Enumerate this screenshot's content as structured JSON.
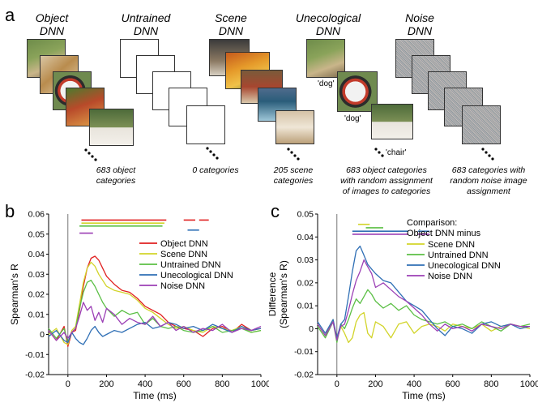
{
  "panel_a": {
    "letter": "a",
    "columns": [
      {
        "title_line1": "Object",
        "title_line2": "DNN",
        "caption_lines": [
          "683 object",
          "categories"
        ]
      },
      {
        "title_line1": "Untrained",
        "title_line2": "DNN",
        "caption_lines": [
          "0 categories"
        ]
      },
      {
        "title_line1": "Scene",
        "title_line2": "DNN",
        "caption_lines": [
          "205 scene",
          "categories"
        ]
      },
      {
        "title_line1": "Unecological",
        "title_line2": "DNN",
        "caption_lines": [
          "683 object categories",
          "with random assignment",
          "of images to categories"
        ]
      },
      {
        "title_line1": "Noise",
        "title_line2": "DNN",
        "caption_lines": [
          "683 categories with",
          "random noise image",
          "assignment"
        ]
      }
    ],
    "unecological_labels": [
      "'dog'",
      "'dog'",
      "'chair'"
    ]
  },
  "colors": {
    "red": "#e02020",
    "yellow": "#d2d42a",
    "green": "#5bbf45",
    "blue": "#2f6fb5",
    "purple": "#9b3fb5"
  },
  "chart_data": [
    {
      "type": "line",
      "panel_letter": "b",
      "xlabel": "Time (ms)",
      "ylabel": "Spearman's R",
      "xlim": [
        -100,
        1000
      ],
      "ylim": [
        -0.02,
        0.06
      ],
      "xticks": [
        "0",
        "200",
        "400",
        "600",
        "800",
        "1000"
      ],
      "yticks": [
        "-0.02",
        "-0.01",
        "0",
        "0.01",
        "0.02",
        "0.03",
        "0.04",
        "0.05",
        "0.06"
      ],
      "legend": [
        "Object DNN",
        "Scene DNN",
        "Untrained DNN",
        "Unecological DNN",
        "Noise DNN"
      ],
      "series": [
        {
          "name": "Object DNN",
          "color_key": "red",
          "x": [
            -100,
            -60,
            -20,
            0,
            20,
            40,
            60,
            80,
            100,
            120,
            140,
            160,
            180,
            200,
            240,
            280,
            320,
            360,
            400,
            440,
            480,
            520,
            560,
            600,
            650,
            700,
            750,
            800,
            850,
            900,
            950,
            1000
          ],
          "y": [
            0.002,
            -0.003,
            0.004,
            -0.006,
            0.001,
            0.002,
            0.012,
            0.024,
            0.033,
            0.038,
            0.039,
            0.037,
            0.033,
            0.029,
            0.025,
            0.022,
            0.021,
            0.018,
            0.014,
            0.012,
            0.01,
            0.006,
            0.004,
            0.003,
            0.002,
            -0.001,
            0.003,
            0.004,
            0.001,
            0.005,
            0.002,
            0.003
          ]
        },
        {
          "name": "Scene DNN",
          "color_key": "yellow",
          "x": [
            -100,
            -60,
            -20,
            0,
            20,
            40,
            60,
            80,
            100,
            120,
            140,
            160,
            180,
            200,
            240,
            280,
            320,
            360,
            400,
            440,
            480,
            520,
            560,
            600,
            650,
            700,
            750,
            800,
            850,
            900,
            950,
            1000
          ],
          "y": [
            0.0,
            0.003,
            -0.004,
            -0.005,
            0.002,
            0.004,
            0.015,
            0.026,
            0.033,
            0.036,
            0.034,
            0.03,
            0.027,
            0.024,
            0.022,
            0.021,
            0.02,
            0.017,
            0.013,
            0.011,
            0.008,
            0.005,
            0.003,
            0.004,
            0.002,
            0.001,
            0.004,
            0.003,
            0.002,
            0.004,
            0.001,
            0.002
          ]
        },
        {
          "name": "Untrained DNN",
          "color_key": "green",
          "x": [
            -100,
            -60,
            -20,
            0,
            20,
            40,
            60,
            80,
            100,
            120,
            140,
            160,
            180,
            200,
            240,
            280,
            320,
            360,
            400,
            440,
            480,
            520,
            560,
            600,
            650,
            700,
            750,
            800,
            850,
            900,
            950,
            1000
          ],
          "y": [
            0.003,
            -0.002,
            0.003,
            -0.004,
            0.001,
            0.003,
            0.013,
            0.021,
            0.026,
            0.027,
            0.024,
            0.02,
            0.016,
            0.013,
            0.009,
            0.012,
            0.01,
            0.011,
            0.005,
            0.008,
            0.004,
            0.003,
            0.004,
            0.002,
            0.001,
            0.002,
            0.004,
            0.001,
            0.002,
            0.003,
            0.001,
            0.002
          ]
        },
        {
          "name": "Unecological DNN",
          "color_key": "blue",
          "x": [
            -100,
            -60,
            -20,
            0,
            20,
            40,
            60,
            80,
            100,
            120,
            140,
            160,
            180,
            200,
            240,
            280,
            320,
            360,
            400,
            440,
            480,
            520,
            560,
            600,
            650,
            700,
            750,
            800,
            850,
            900,
            950,
            1000
          ],
          "y": [
            -0.001,
            0.002,
            -0.003,
            -0.004,
            0.001,
            -0.002,
            -0.004,
            -0.005,
            -0.002,
            0.002,
            0.004,
            0.001,
            -0.001,
            0.0,
            0.002,
            0.001,
            0.003,
            0.005,
            0.006,
            0.003,
            0.004,
            0.006,
            0.005,
            0.003,
            0.004,
            0.002,
            0.005,
            0.003,
            0.001,
            0.004,
            0.002,
            0.003
          ]
        },
        {
          "name": "Noise DNN",
          "color_key": "purple",
          "x": [
            -100,
            -60,
            -20,
            0,
            20,
            40,
            60,
            80,
            100,
            120,
            140,
            160,
            180,
            200,
            240,
            280,
            320,
            360,
            400,
            440,
            480,
            520,
            560,
            600,
            650,
            700,
            750,
            800,
            850,
            900,
            950,
            1000
          ],
          "y": [
            0.002,
            -0.003,
            0.001,
            -0.002,
            0.001,
            0.003,
            0.009,
            0.016,
            0.012,
            0.014,
            0.007,
            0.011,
            0.006,
            0.013,
            0.01,
            0.005,
            0.008,
            0.006,
            0.005,
            0.009,
            0.004,
            0.006,
            0.002,
            0.004,
            0.001,
            0.003,
            0.002,
            0.005,
            0.001,
            0.003,
            0.002,
            0.004
          ]
        }
      ],
      "sig_bars": [
        {
          "color_key": "red",
          "y": 0.057,
          "segments": [
            [
              70,
              510
            ],
            [
              600,
              660
            ],
            [
              680,
              730
            ]
          ]
        },
        {
          "color_key": "yellow",
          "y": 0.0555,
          "segments": [
            [
              70,
              500
            ]
          ]
        },
        {
          "color_key": "green",
          "y": 0.054,
          "segments": [
            [
              60,
              490
            ]
          ]
        },
        {
          "color_key": "blue",
          "y": 0.052,
          "segments": [
            [
              620,
              680
            ]
          ]
        },
        {
          "color_key": "purple",
          "y": 0.0505,
          "segments": [
            [
              60,
              130
            ]
          ]
        }
      ]
    },
    {
      "type": "line",
      "panel_letter": "c",
      "xlabel": "Time (ms)",
      "ylabel_line1": "Difference",
      "ylabel_line2": "(Spearman's R)",
      "xlim": [
        -100,
        1000
      ],
      "ylim": [
        -0.02,
        0.05
      ],
      "xticks": [
        "0",
        "200",
        "400",
        "600",
        "800",
        "1000"
      ],
      "yticks": [
        "-0.02",
        "-0.01",
        "0",
        "0.01",
        "0.02",
        "0.03",
        "0.04",
        "0.05"
      ],
      "legend_heading_line1": "Comparison:",
      "legend_heading_line2": "Object DNN minus",
      "legend": [
        "Scene DNN",
        "Untrained DNN",
        "Unecological DNN",
        "Noise DNN"
      ],
      "series": [
        {
          "name": "Scene DNN",
          "color_key": "yellow",
          "x": [
            -100,
            -60,
            -20,
            0,
            20,
            40,
            60,
            80,
            100,
            120,
            140,
            160,
            180,
            200,
            240,
            280,
            320,
            360,
            400,
            440,
            480,
            520,
            560,
            600,
            650,
            700,
            750,
            800,
            850,
            900,
            950,
            1000
          ],
          "y": [
            0.002,
            -0.003,
            0.004,
            -0.005,
            0.001,
            -0.002,
            -0.006,
            -0.004,
            0.003,
            0.006,
            0.007,
            -0.002,
            -0.004,
            0.003,
            0.001,
            -0.004,
            0.002,
            0.003,
            -0.002,
            0.001,
            0.002,
            0.001,
            -0.001,
            0.002,
            0.001,
            0.0,
            0.002,
            -0.001,
            0.001,
            0.002,
            0.001,
            0.0
          ]
        },
        {
          "name": "Untrained DNN",
          "color_key": "green",
          "x": [
            -100,
            -60,
            -20,
            0,
            20,
            40,
            60,
            80,
            100,
            120,
            140,
            160,
            180,
            200,
            240,
            280,
            320,
            360,
            400,
            440,
            480,
            520,
            560,
            600,
            650,
            700,
            750,
            800,
            850,
            900,
            950,
            1000
          ],
          "y": [
            0.001,
            -0.004,
            0.003,
            -0.006,
            0.002,
            0.0,
            0.004,
            0.009,
            0.013,
            0.011,
            0.014,
            0.017,
            0.015,
            0.012,
            0.009,
            0.011,
            0.008,
            0.01,
            0.006,
            0.004,
            0.003,
            0.002,
            0.003,
            0.001,
            0.002,
            0.0,
            0.003,
            0.001,
            -0.001,
            0.002,
            0.001,
            0.002
          ]
        },
        {
          "name": "Unecological DNN",
          "color_key": "blue",
          "x": [
            -100,
            -60,
            -20,
            0,
            20,
            40,
            60,
            80,
            100,
            120,
            140,
            160,
            180,
            200,
            240,
            280,
            320,
            360,
            400,
            440,
            480,
            520,
            560,
            600,
            650,
            700,
            750,
            800,
            850,
            900,
            950,
            1000
          ],
          "y": [
            0.003,
            -0.002,
            0.004,
            -0.004,
            0.002,
            0.004,
            0.014,
            0.025,
            0.034,
            0.036,
            0.032,
            0.028,
            0.026,
            0.024,
            0.021,
            0.02,
            0.016,
            0.012,
            0.01,
            0.008,
            0.004,
            0.0,
            -0.003,
            0.001,
            0.0,
            -0.002,
            0.002,
            0.003,
            0.001,
            0.002,
            0.0,
            0.001
          ]
        },
        {
          "name": "Noise DNN",
          "color_key": "purple",
          "x": [
            -100,
            -60,
            -20,
            0,
            20,
            40,
            60,
            80,
            100,
            120,
            140,
            160,
            180,
            200,
            240,
            280,
            320,
            360,
            400,
            440,
            480,
            520,
            560,
            600,
            650,
            700,
            750,
            800,
            850,
            900,
            950,
            1000
          ],
          "y": [
            0.002,
            -0.003,
            0.003,
            -0.005,
            0.001,
            0.002,
            0.008,
            0.015,
            0.021,
            0.025,
            0.03,
            0.027,
            0.024,
            0.018,
            0.02,
            0.017,
            0.014,
            0.012,
            0.009,
            0.006,
            0.002,
            -0.001,
            0.002,
            0.0,
            0.001,
            -0.001,
            0.002,
            0.001,
            0.0,
            0.002,
            0.001,
            0.001
          ]
        }
      ],
      "sig_bars": [
        {
          "color_key": "yellow",
          "y": 0.0455,
          "segments": [
            [
              110,
              170
            ]
          ]
        },
        {
          "color_key": "green",
          "y": 0.044,
          "segments": [
            [
              150,
              240
            ]
          ]
        },
        {
          "color_key": "blue",
          "y": 0.0425,
          "segments": [
            [
              80,
              370
            ],
            [
              420,
              480
            ]
          ]
        },
        {
          "color_key": "purple",
          "y": 0.0412,
          "segments": [
            [
              80,
              370
            ],
            [
              420,
              480
            ]
          ]
        }
      ]
    }
  ]
}
